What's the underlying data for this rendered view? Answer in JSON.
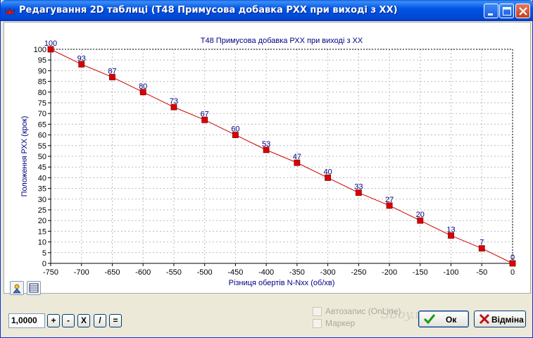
{
  "window": {
    "title": "Редагування 2D таблиці (T48 Примусова добавка РХХ при виході з ХХ)"
  },
  "chart_data": {
    "type": "line",
    "title": "T48 Примусова добавка РХХ при виході з ХХ",
    "xlabel": "Різниця обертів N-Nxx (об/хв)",
    "ylabel": "Положення РХХ (крок)",
    "xlim": [
      -750,
      0
    ],
    "ylim": [
      0,
      100
    ],
    "x_ticks": [
      -750,
      -700,
      -650,
      -600,
      -550,
      -500,
      -450,
      -400,
      -350,
      -300,
      -250,
      -200,
      -150,
      -100,
      -50,
      0
    ],
    "y_ticks": [
      0,
      5,
      10,
      15,
      20,
      25,
      30,
      35,
      40,
      45,
      50,
      55,
      60,
      65,
      70,
      75,
      80,
      85,
      90,
      95,
      100
    ],
    "grid": true,
    "series": [
      {
        "color": "#CC0000",
        "marker_color": "#DD0000",
        "x": [
          -750,
          -700,
          -650,
          -600,
          -550,
          -500,
          -450,
          -400,
          -350,
          -300,
          -250,
          -200,
          -150,
          -100,
          -50,
          0
        ],
        "values": [
          100,
          93,
          87,
          80,
          73,
          67,
          60,
          53,
          47,
          40,
          33,
          27,
          20,
          13,
          7,
          0
        ]
      }
    ]
  },
  "toolbar": {
    "value": "1,0000",
    "ops": [
      "+",
      "-",
      "X",
      "/",
      "="
    ]
  },
  "options": {
    "autosave_label": "Автозапис (OnLine)",
    "marker_label": "Маркер"
  },
  "buttons": {
    "ok_label": "Ок",
    "cancel_label": "Відміна"
  },
  "watermark": "Sboy.us",
  "colors": {
    "axis_text": "#000080",
    "line": "#CC0000",
    "titlebar": "#0055E5"
  }
}
